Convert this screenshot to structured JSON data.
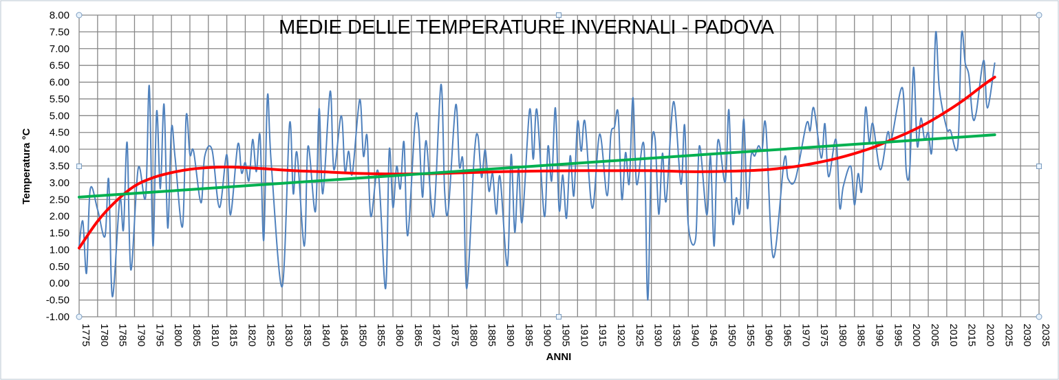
{
  "chart_data": {
    "type": "line",
    "title": "MEDIE DELLE TEMPERATURE INVERNALI - PADOVA",
    "xlabel": "ANNI",
    "ylabel": "Temperatura °C",
    "xlim": [
      1775,
      2035
    ],
    "ylim": [
      -1,
      8
    ],
    "x_ticks": [
      "1775",
      "1780",
      "1785",
      "1790",
      "1795",
      "1800",
      "1805",
      "1810",
      "1815",
      "1820",
      "1825",
      "1830",
      "1835",
      "1840",
      "1845",
      "1850",
      "1855",
      "1860",
      "1865",
      "1870",
      "1875",
      "1880",
      "1885",
      "1890",
      "1895",
      "1900",
      "1905",
      "1910",
      "1915",
      "1920",
      "1925",
      "1930",
      "1935",
      "1940",
      "1945",
      "1950",
      "1955",
      "1960",
      "1965",
      "1970",
      "1975",
      "1980",
      "1985",
      "1990",
      "1995",
      "2000",
      "2005",
      "2010",
      "2015",
      "2020",
      "2025",
      "2030",
      "2035"
    ],
    "y_ticks": [
      "8.00",
      "7.50",
      "7.00",
      "6.50",
      "6.00",
      "5.50",
      "5.00",
      "4.50",
      "4.00",
      "3.50",
      "3.00",
      "2.50",
      "2.00",
      "1.50",
      "1.00",
      "0.50",
      "0.00",
      "-0.50",
      "-1.00"
    ],
    "grid": true,
    "legend": "none",
    "series": [
      {
        "color": "#4f81bd",
        "style": "smoothed line",
        "x": [
          1775,
          1776,
          1777,
          1778,
          1780,
          1782,
          1783,
          1784,
          1786,
          1787,
          1788,
          1789,
          1791,
          1793,
          1794,
          1795,
          1796,
          1797,
          1798,
          1799,
          1800,
          1801,
          1803,
          1804,
          1805,
          1806,
          1808,
          1809,
          1811,
          1813,
          1815,
          1816,
          1818,
          1819,
          1820,
          1821,
          1822,
          1823,
          1824,
          1825,
          1826,
          1827,
          1830,
          1832,
          1833,
          1834,
          1836,
          1837,
          1839,
          1840,
          1841,
          1843,
          1844,
          1846,
          1847,
          1848,
          1849,
          1851,
          1852,
          1853,
          1854,
          1856,
          1858,
          1859,
          1860,
          1861,
          1862,
          1863,
          1864,
          1866,
          1867,
          1868,
          1869,
          1871,
          1873,
          1874,
          1875,
          1877,
          1878,
          1879,
          1880,
          1882,
          1883,
          1884,
          1885,
          1886,
          1887,
          1888,
          1889,
          1891,
          1892,
          1893,
          1894,
          1895,
          1897,
          1898,
          1899,
          1901,
          1902,
          1903,
          1904,
          1905,
          1906,
          1907,
          1908,
          1909,
          1910,
          1911,
          1912,
          1914,
          1916,
          1918,
          1919,
          1920,
          1921,
          1922,
          1923,
          1924,
          1925,
          1926,
          1928,
          1929,
          1930,
          1931,
          1932,
          1933,
          1934,
          1936,
          1938,
          1939,
          1940,
          1942,
          1943,
          1945,
          1946,
          1947,
          1948,
          1950,
          1951,
          1952,
          1953,
          1954,
          1955,
          1956,
          1957,
          1958,
          1959,
          1960,
          1961,
          1963,
          1966,
          1967,
          1969,
          1972,
          1973,
          1974,
          1976,
          1977,
          1978,
          1980,
          1981,
          1982,
          1984,
          1985,
          1986,
          1987,
          1988,
          1989,
          1990,
          1992,
          1994,
          1995,
          1998,
          1999,
          2000,
          2001,
          2002,
          2003,
          2004,
          2005,
          2006,
          2007,
          2008,
          2010,
          2011,
          2013,
          2014,
          2015,
          2016,
          2017,
          2018,
          2020,
          2021,
          2023
        ],
        "y": [
          1.1,
          1.85,
          0.3,
          2.8,
          2.2,
          1.4,
          3.1,
          -0.4,
          2.5,
          1.6,
          4.2,
          0.4,
          3.43,
          2.57,
          5.89,
          1.11,
          5.13,
          2.82,
          5.34,
          1.65,
          4.62,
          3.74,
          1.69,
          5.0,
          3.84,
          3.94,
          2.4,
          3.78,
          3.98,
          2.26,
          3.84,
          2.04,
          4.15,
          3.29,
          3.6,
          3.06,
          4.29,
          3.33,
          4.41,
          1.28,
          5.58,
          3.64,
          -0.1,
          4.76,
          2.67,
          3.9,
          1.11,
          4.09,
          2.14,
          5.21,
          2.67,
          5.73,
          3.39,
          5.0,
          3.33,
          3.94,
          3.27,
          5.48,
          3.8,
          4.39,
          2.0,
          3.33,
          -0.16,
          3.98,
          2.26,
          3.49,
          2.82,
          4.21,
          1.42,
          4.82,
          4.6,
          2.57,
          4.25,
          2.0,
          5.93,
          2.75,
          2.2,
          5.32,
          3.49,
          3.57,
          -0.16,
          3.78,
          4.41,
          3.16,
          3.98,
          2.75,
          3.27,
          2.06,
          3.18,
          0.52,
          3.84,
          1.52,
          3.43,
          1.83,
          5.17,
          3.7,
          5.17,
          2.0,
          4.09,
          3.06,
          5.23,
          2.2,
          3.23,
          1.94,
          3.8,
          2.61,
          4.82,
          3.94,
          4.82,
          2.24,
          4.45,
          2.61,
          4.41,
          4.66,
          5.07,
          2.51,
          3.9,
          2.98,
          5.54,
          2.96,
          4.1,
          -0.5,
          3.88,
          4.31,
          2.06,
          3.88,
          2.45,
          5.42,
          2.96,
          4.72,
          1.73,
          1.34,
          4.1,
          2.04,
          3.8,
          1.11,
          4.25,
          3.02,
          5.17,
          1.85,
          2.55,
          2.16,
          4.9,
          2.24,
          3.8,
          3.8,
          4.1,
          3.99,
          4.7,
          0.77,
          3.7,
          3.12,
          3.1,
          4.76,
          4.55,
          5.23,
          3.74,
          4.76,
          3.18,
          4.29,
          2.26,
          2.9,
          3.49,
          2.34,
          3.27,
          2.78,
          5.23,
          4.2,
          4.76,
          3.39,
          4.5,
          4.29,
          5.83,
          3.39,
          3.43,
          6.44,
          4.1,
          4.93,
          4.29,
          4.5,
          4.0,
          7.47,
          5.79,
          4.62,
          4.56,
          4.1,
          7.43,
          6.57,
          6.2,
          4.97,
          5.1,
          6.65,
          5.23,
          6.57
        ]
      },
      {
        "color": "#ff0000",
        "style": "polynomial trendline",
        "x": [
          1775,
          1780,
          1785,
          1790,
          1795,
          1800,
          1805,
          1810,
          1815,
          1820,
          1825,
          1830,
          1835,
          1840,
          1850,
          1860,
          1870,
          1880,
          1890,
          1900,
          1910,
          1920,
          1930,
          1940,
          1950,
          1960,
          1965,
          1970,
          1975,
          1980,
          1985,
          1990,
          1995,
          2000,
          2005,
          2010,
          2015,
          2020,
          2023
        ],
        "y": [
          1.05,
          1.85,
          2.45,
          2.9,
          3.15,
          3.3,
          3.4,
          3.45,
          3.47,
          3.45,
          3.42,
          3.38,
          3.35,
          3.33,
          3.28,
          3.26,
          3.27,
          3.3,
          3.33,
          3.35,
          3.36,
          3.36,
          3.36,
          3.33,
          3.34,
          3.38,
          3.43,
          3.5,
          3.6,
          3.72,
          3.87,
          4.05,
          4.28,
          4.52,
          4.8,
          5.13,
          5.5,
          5.92,
          6.15
        ]
      },
      {
        "color": "#00b050",
        "style": "linear trendline",
        "x": [
          1775,
          2023
        ],
        "y": [
          2.57,
          4.43
        ]
      }
    ]
  }
}
